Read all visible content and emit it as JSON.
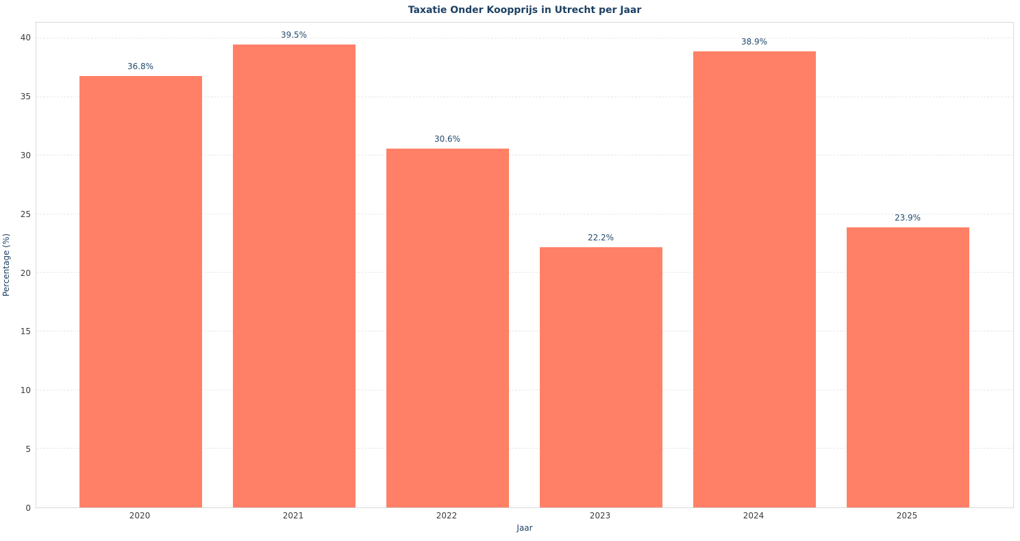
{
  "chart_data": {
    "type": "bar",
    "title": "Taxatie Onder Koopprijs in Utrecht per Jaar",
    "categories": [
      "2020",
      "2021",
      "2022",
      "2023",
      "2024",
      "2025"
    ],
    "values": [
      36.8,
      39.5,
      30.6,
      22.2,
      38.9,
      23.9
    ],
    "value_labels": [
      "36.8%",
      "39.5%",
      "30.6%",
      "22.2%",
      "38.9%",
      "23.9%"
    ],
    "xlabel": "Jaar",
    "ylabel": "Percentage (%)",
    "ylim": [
      0,
      41.34
    ],
    "yticks": [
      0,
      5,
      10,
      15,
      20,
      25,
      30,
      35,
      40
    ],
    "grid": "horizontal-dashed",
    "legend": "none",
    "colors": {
      "bar": "#ff8066",
      "title": "#1e4164",
      "axis_label": "#1e4164",
      "value_label": "#234a6d",
      "tick_label": "#3a3a3a",
      "gridline": "#e7e7ea",
      "spine": "#d9d9d9",
      "background": "#ffffff"
    }
  }
}
